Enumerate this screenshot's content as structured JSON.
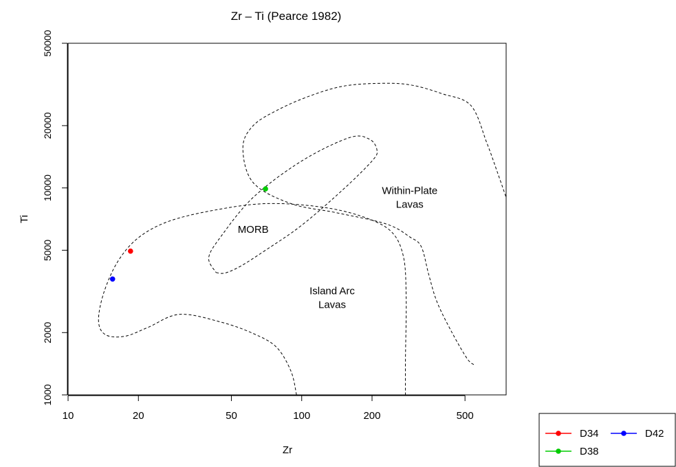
{
  "chart_data": {
    "type": "scatter",
    "title": "Zr – Ti (Pearce 1982)",
    "xlabel": "Zr",
    "ylabel": "Ti",
    "xscale": "log",
    "yscale": "log",
    "xlim": [
      10,
      750
    ],
    "ylim": [
      1000,
      50000
    ],
    "xticks": [
      10,
      20,
      50,
      100,
      200,
      500
    ],
    "xtick_labels": [
      "10",
      "20",
      "50",
      "100",
      "200",
      "500"
    ],
    "yticks": [
      1000,
      2000,
      5000,
      10000,
      20000,
      50000
    ],
    "ytick_labels": [
      "1000",
      "2000",
      "5000",
      "10000",
      "20000",
      "50000"
    ],
    "grid": false,
    "legend_position": "bottom-right",
    "series": [
      {
        "name": "D34",
        "color": "#ff0000",
        "points": [
          [
            18.5,
            4950
          ]
        ]
      },
      {
        "name": "D38",
        "color": "#00cc00",
        "points": [
          [
            70,
            9900
          ]
        ]
      },
      {
        "name": "D42",
        "color": "#0000ff",
        "points": [
          [
            15.5,
            3630
          ]
        ]
      }
    ],
    "field_labels": [
      {
        "lines": [
          "Within-Plate",
          "Lavas"
        ],
        "at": [
          290,
          9000
        ]
      },
      {
        "lines": [
          "MORB"
        ],
        "at": [
          62,
          6300
        ]
      },
      {
        "lines": [
          "Island Arc",
          "Lavas"
        ],
        "at": [
          135,
          2950
        ]
      }
    ],
    "boundaries": [
      {
        "region": "Island Arc Lavas",
        "points": [
          [
            95,
            1000
          ],
          [
            90,
            1300
          ],
          [
            78,
            1700
          ],
          [
            62,
            1980
          ],
          [
            45,
            2250
          ],
          [
            30,
            2450
          ],
          [
            22,
            2120
          ],
          [
            17.5,
            1920
          ],
          [
            14.5,
            1950
          ],
          [
            13.5,
            2270
          ],
          [
            14.2,
            3100
          ],
          [
            16.3,
            4400
          ],
          [
            20,
            5750
          ],
          [
            27,
            6900
          ],
          [
            42,
            7800
          ],
          [
            70,
            8400
          ],
          [
            120,
            8100
          ],
          [
            180,
            7300
          ],
          [
            240,
            6200
          ],
          [
            272,
            4700
          ],
          [
            280,
            3000
          ],
          [
            278,
            1500
          ],
          [
            278,
            1000
          ]
        ]
      },
      {
        "region": "MORB",
        "points": [
          [
            43,
            3900
          ],
          [
            47,
            3880
          ],
          [
            55,
            4200
          ],
          [
            70,
            5000
          ],
          [
            100,
            6600
          ],
          [
            150,
            9800
          ],
          [
            200,
            13500
          ],
          [
            210,
            15200
          ],
          [
            195,
            17200
          ],
          [
            160,
            17500
          ],
          [
            100,
            13500
          ],
          [
            62,
            9000
          ],
          [
            45,
            5800
          ],
          [
            40,
            4600
          ],
          [
            43,
            3900
          ]
        ]
      },
      {
        "region": "Within-Plate Lavas",
        "points": [
          [
            545,
            1400
          ],
          [
            510,
            1500
          ],
          [
            440,
            2000
          ],
          [
            380,
            2800
          ],
          [
            350,
            3800
          ],
          [
            325,
            5200
          ],
          [
            290,
            5800
          ],
          [
            230,
            6700
          ],
          [
            140,
            7600
          ],
          [
            90,
            8400
          ],
          [
            62,
            10600
          ],
          [
            56,
            15600
          ],
          [
            62,
            20000
          ],
          [
            80,
            24000
          ],
          [
            110,
            28000
          ],
          [
            150,
            31000
          ],
          [
            210,
            32000
          ],
          [
            290,
            31500
          ],
          [
            400,
            28500
          ],
          [
            530,
            25000
          ],
          [
            620,
            16500
          ],
          [
            690,
            11800
          ],
          [
            750,
            9000
          ]
        ]
      }
    ]
  }
}
